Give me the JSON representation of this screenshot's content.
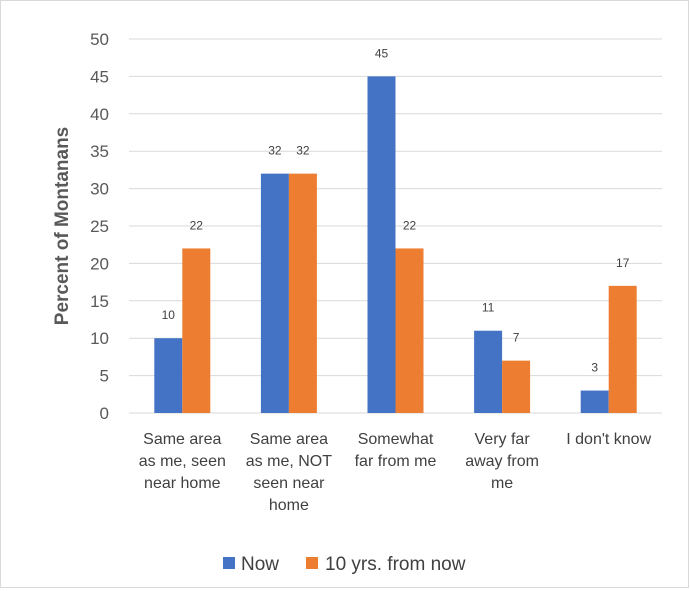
{
  "chart_data": {
    "type": "bar",
    "title": "",
    "xlabel": "",
    "ylabel": "Percent of Montanans",
    "ylim": [
      0,
      50
    ],
    "yticks": [
      0,
      5,
      10,
      15,
      20,
      25,
      30,
      35,
      40,
      45,
      50
    ],
    "grid": true,
    "legend_position": "bottom",
    "categories": [
      [
        "Same area",
        "as me, seen",
        "near home"
      ],
      [
        "Same area",
        "as me, NOT",
        "seen near",
        "home"
      ],
      [
        "Somewhat",
        "far from me"
      ],
      [
        "Very far",
        "away from",
        "me"
      ],
      [
        "I don't know"
      ]
    ],
    "series": [
      {
        "name": "Now",
        "color": "#4472c4",
        "values": [
          10,
          32,
          45,
          11,
          3
        ]
      },
      {
        "name": "10 yrs. from now",
        "color": "#ed7d31",
        "values": [
          22,
          32,
          22,
          7,
          17
        ]
      }
    ]
  }
}
